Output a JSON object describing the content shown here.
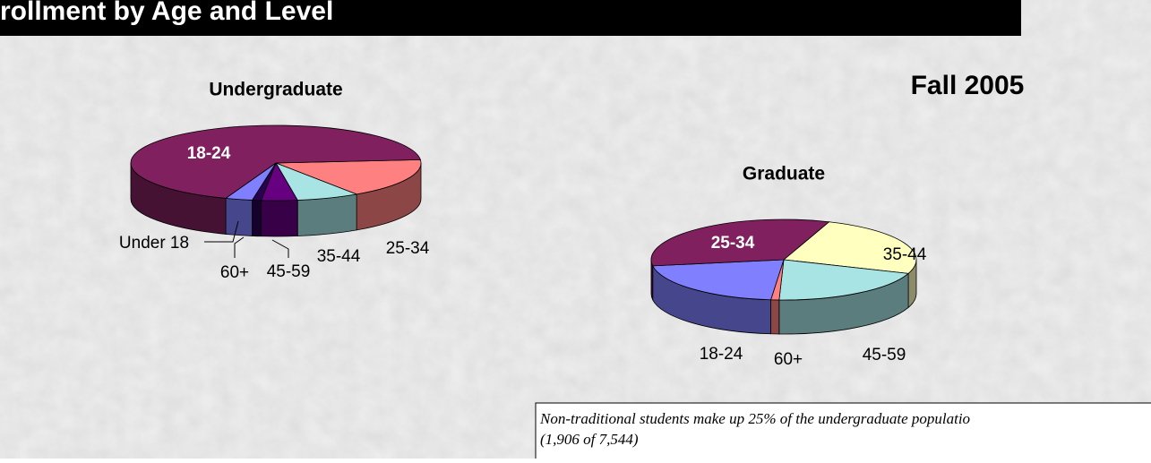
{
  "title": "rollment by Age and Level",
  "subtitle": "Fall 2005",
  "note": [
    "Non-traditional students make up 25%  of the  undergraduate populatio",
    "(1,906 of 7,544)"
  ],
  "chart_data": [
    {
      "type": "pie",
      "title": "Undergraduate",
      "categories": [
        "25-34",
        "35-44",
        "45-59",
        "60+",
        "Under 18",
        "18-24"
      ],
      "values": [
        17,
        7,
        4,
        1,
        3,
        68
      ],
      "colors": [
        "#ff8080",
        "#a8e4e4",
        "#660080",
        "#2a0050",
        "#8080ff",
        "#80205f"
      ]
    },
    {
      "type": "pie",
      "title": "Graduate",
      "categories": [
        "35-44",
        "45-59",
        "60+",
        "18-24",
        "25-34"
      ],
      "values": [
        25,
        20,
        1,
        21,
        33
      ],
      "colors": [
        "#ffffc0",
        "#a8e4e4",
        "#ff8080",
        "#8080ff",
        "#80205f"
      ]
    }
  ]
}
